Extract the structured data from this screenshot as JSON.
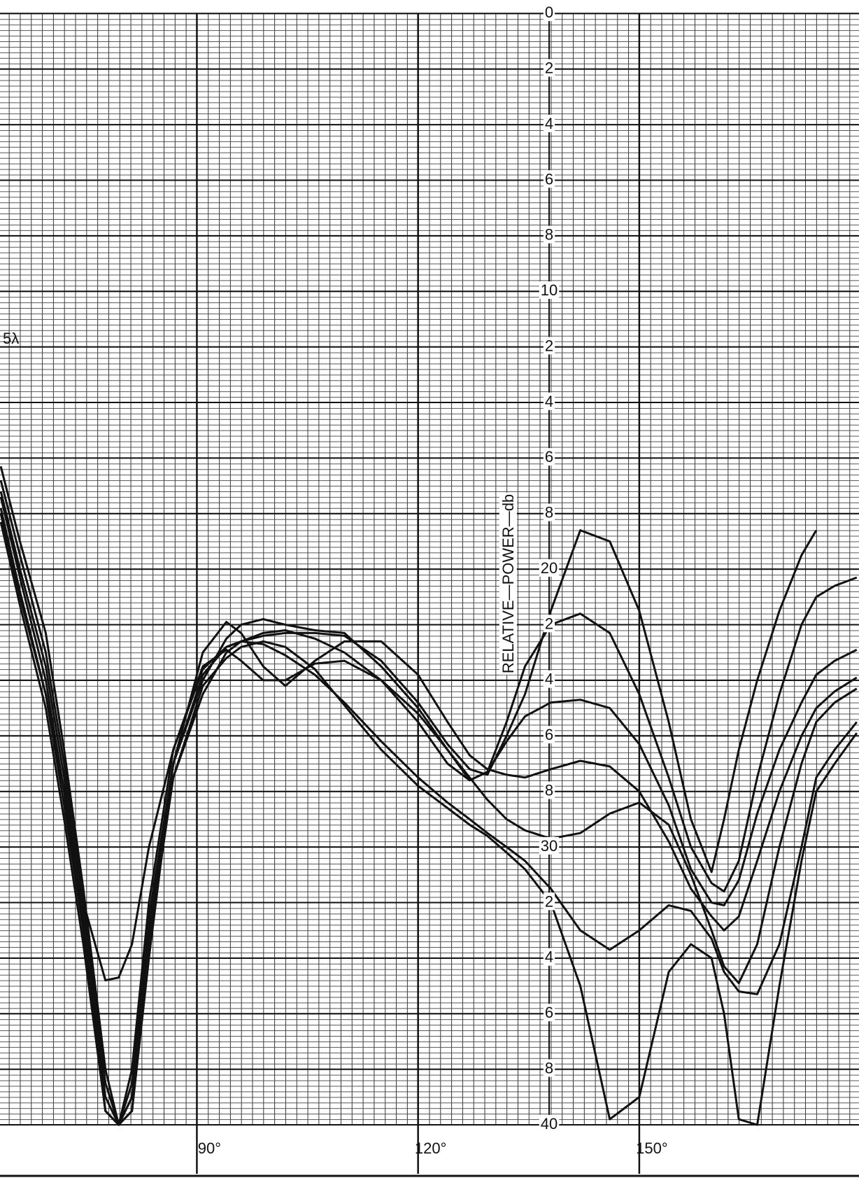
{
  "chart_data": {
    "type": "line",
    "y_axis_label": "RELATIVE—POWER—db",
    "annotation": "5λ",
    "xlim": [
      63.3,
      179.8
    ],
    "ylim": [
      0,
      40
    ],
    "y_inverted": true,
    "grid": true,
    "xticks": [
      {
        "value": 90,
        "label": "90°"
      },
      {
        "value": 120,
        "label": "120°"
      },
      {
        "value": 150,
        "label": "150°"
      }
    ],
    "yticks": [
      0,
      2,
      4,
      6,
      8,
      10,
      {
        "value": 12,
        "label": "2"
      },
      {
        "value": 14,
        "label": "4"
      },
      {
        "value": 16,
        "label": "6"
      },
      {
        "value": 18,
        "label": "8"
      },
      20,
      {
        "value": 22,
        "label": "2"
      },
      {
        "value": 24,
        "label": "4"
      },
      {
        "value": 26,
        "label": "6"
      },
      {
        "value": 28,
        "label": "8"
      },
      30,
      {
        "value": 32,
        "label": "2"
      },
      {
        "value": 34,
        "label": "4"
      },
      {
        "value": 36,
        "label": "6"
      },
      {
        "value": 38,
        "label": "8"
      },
      40
    ],
    "x": [
      63.4,
      66,
      69.5,
      72,
      74.6,
      77.6,
      79.4,
      81.2,
      83.5,
      86.8,
      90.8,
      94,
      96,
      99,
      102,
      106,
      110,
      115,
      120,
      124,
      127,
      129.4,
      132,
      134.5,
      138,
      142,
      146,
      150,
      154,
      157,
      159.8,
      161.5,
      163.5,
      166,
      169,
      172,
      174,
      176.5,
      179.5
    ],
    "series": [
      {
        "color": "#111111",
        "values": [
          16.3,
          19,
          22.3,
          26.5,
          31.5,
          38,
          40,
          38,
          32,
          26.5,
          23.6,
          22.8,
          22.6,
          22.4,
          22.3,
          22.3,
          22.4,
          23.3,
          24.8,
          26.3,
          27.2,
          27.4,
          26,
          24.5,
          21.5,
          18.6,
          19,
          21.5,
          25.5,
          29,
          30.9,
          29,
          26.5,
          24,
          21.5,
          19.5,
          18.6,
          null,
          null
        ]
      },
      {
        "color": "#111111",
        "values": [
          16.8,
          19.5,
          23,
          27,
          32,
          38.5,
          40,
          38.5,
          32.5,
          27,
          24,
          22.5,
          22,
          21.8,
          22,
          22.2,
          22.3,
          23.5,
          25,
          26.5,
          27.6,
          27.3,
          25.5,
          23.5,
          22,
          21.6,
          22.3,
          24.5,
          27.5,
          30,
          31.3,
          31.6,
          30.5,
          27.5,
          24.5,
          22,
          21,
          20.6,
          20.3
        ]
      },
      {
        "color": "#111111",
        "values": [
          17.2,
          20,
          23.5,
          27.5,
          32.5,
          39,
          40,
          39,
          33,
          27.5,
          24.5,
          23,
          22.6,
          22.3,
          22.2,
          22.5,
          23,
          24,
          25.5,
          27,
          27.6,
          27.3,
          26.2,
          25.3,
          24.8,
          24.7,
          25,
          26.3,
          28.5,
          30.8,
          32,
          32.1,
          31.2,
          28.8,
          26.5,
          24.8,
          23.8,
          23.3,
          22.9
        ]
      },
      {
        "color": "#111111",
        "values": [
          17.4,
          20.3,
          24,
          28,
          33,
          39.5,
          40,
          39.5,
          34,
          27,
          23,
          21.9,
          22.3,
          23.5,
          24.2,
          23.3,
          22.6,
          22.6,
          23.8,
          25.5,
          26.7,
          27.2,
          27.4,
          27.5,
          27.2,
          26.9,
          27.1,
          28,
          29.8,
          31.5,
          32.5,
          33,
          32.5,
          30.5,
          28,
          26,
          25,
          24.4,
          23.9
        ]
      },
      {
        "color": "#111111",
        "values": [
          17.8,
          20.8,
          24.5,
          28,
          32,
          34.8,
          34.7,
          33.5,
          30,
          26.5,
          23.5,
          22.9,
          23.3,
          24,
          24,
          23.4,
          23.3,
          24,
          25.2,
          26.5,
          27.5,
          28.3,
          29,
          29.4,
          29.7,
          29.5,
          28.8,
          28.4,
          29.2,
          31,
          33,
          34.3,
          34.9,
          33.5,
          30,
          27,
          25.5,
          24.8,
          24.3
        ]
      },
      {
        "color": "#111111",
        "values": [
          18,
          21,
          24.5,
          28.5,
          33,
          39.5,
          40,
          39,
          33,
          27,
          23.8,
          22.8,
          22.6,
          22.7,
          23.1,
          23.8,
          24.8,
          26.2,
          27.5,
          28.4,
          29,
          29.5,
          30,
          30.5,
          31.5,
          33,
          33.7,
          33,
          32.1,
          32.3,
          33.3,
          34.5,
          35.2,
          35.3,
          33.5,
          30,
          27.5,
          26.5,
          25.5
        ]
      },
      {
        "color": "#111111",
        "values": [
          18.3,
          21.3,
          25,
          29,
          33.5,
          39.5,
          40,
          39.5,
          33.5,
          27.5,
          24.2,
          23.2,
          22.8,
          22.6,
          22.8,
          23.6,
          24.9,
          26.5,
          27.8,
          28.6,
          29.2,
          29.6,
          30.2,
          30.8,
          32,
          35,
          39.8,
          39,
          34.5,
          33.5,
          34,
          36,
          39.8,
          40,
          35,
          30.5,
          28,
          27,
          25.9
        ]
      }
    ]
  }
}
